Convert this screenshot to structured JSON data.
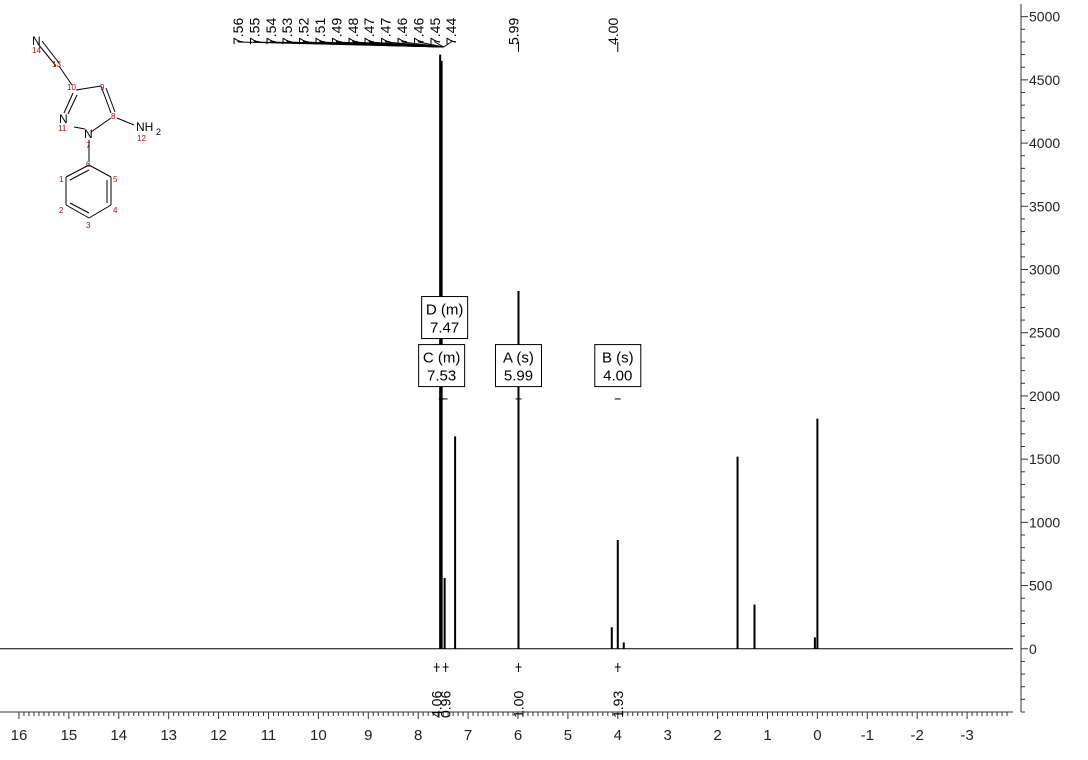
{
  "chart_data": {
    "type": "line",
    "title": "",
    "xlabel": "",
    "ylabel": "",
    "xlim": [
      16.2,
      -3.9
    ],
    "ylim": [
      -500,
      5100
    ],
    "x_ticks": [
      "16",
      "15",
      "14",
      "13",
      "12",
      "11",
      "10",
      "9",
      "8",
      "7",
      "6",
      "5",
      "4",
      "3",
      "2",
      "1",
      "0",
      "-1",
      "-2",
      "-3"
    ],
    "y_ticks": [
      "5000",
      "4500",
      "4000",
      "3500",
      "3000",
      "2500",
      "2000",
      "1500",
      "1000",
      "500",
      "0"
    ],
    "peak_list": [
      "7.56",
      "7.55",
      "7.54",
      "7.53",
      "7.52",
      "7.51",
      "7.49",
      "7.48",
      "7.47",
      "7.47",
      "7.46",
      "7.46",
      "7.45",
      "7.44"
    ],
    "single_peaks": [
      "5.99",
      "4.00"
    ],
    "peaks": [
      {
        "x": 7.56,
        "y": 4700
      },
      {
        "x": 7.53,
        "y": 4650
      },
      {
        "x": 7.47,
        "y": 560
      },
      {
        "x": 7.26,
        "y": 1680
      },
      {
        "x": 5.99,
        "y": 2830
      },
      {
        "x": 4.12,
        "y": 170
      },
      {
        "x": 4.0,
        "y": 860
      },
      {
        "x": 3.88,
        "y": 50
      },
      {
        "x": 1.6,
        "y": 1520
      },
      {
        "x": 1.26,
        "y": 350
      },
      {
        "x": 0.05,
        "y": 90
      },
      {
        "x": 0.0,
        "y": 1820
      }
    ],
    "multiplets": [
      {
        "label": "D (m)",
        "shift": "7.47",
        "x": 7.47,
        "y": 2620
      },
      {
        "label": "C (m)",
        "shift": "7.53",
        "x": 7.53,
        "y": 2240
      },
      {
        "label": "A (s)",
        "shift": "5.99",
        "x": 5.99,
        "y": 2240
      },
      {
        "label": "B (s)",
        "shift": "4.00",
        "x": 4.0,
        "y": 2240
      }
    ],
    "integrals": [
      {
        "value": "4.06",
        "x": 7.63
      },
      {
        "value": "0.96",
        "x": 7.45
      },
      {
        "value": "1.00",
        "x": 5.99
      },
      {
        "value": "1.93",
        "x": 4.0
      }
    ]
  },
  "molecule": {
    "atoms": {
      "n14": "N",
      "n11": "N",
      "n7": "N",
      "nh2": "NH",
      "nh2_sub": "2"
    },
    "atom_numbers": [
      "1",
      "2",
      "3",
      "4",
      "5",
      "6",
      "7",
      "8",
      "9",
      "10",
      "11",
      "12",
      "13",
      "14"
    ]
  }
}
